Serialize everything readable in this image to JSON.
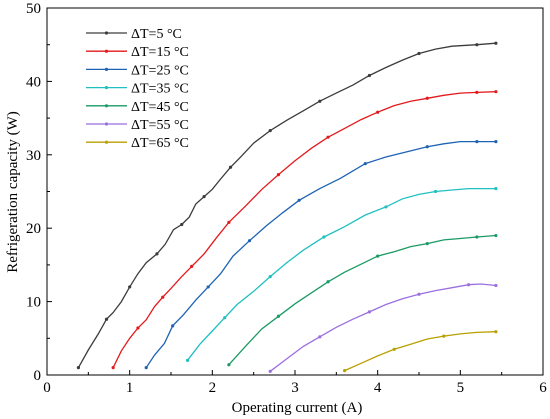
{
  "chart_data": {
    "type": "line",
    "xlabel": "Operating current (A)",
    "ylabel": "Refrigeration capacity (W)",
    "xlim": [
      0,
      6
    ],
    "ylim": [
      0,
      50
    ],
    "xticks": [
      "0",
      "1",
      "2",
      "3",
      "4",
      "5",
      "6"
    ],
    "yticks": [
      "0",
      "10",
      "20",
      "30",
      "40",
      "50"
    ],
    "grid": false,
    "legend_position": "top-left",
    "series": [
      {
        "name": "ΔT=5 °C",
        "color": "#3c3c3c",
        "points": [
          [
            0.38,
            1.0
          ],
          [
            0.5,
            3.4
          ],
          [
            0.62,
            5.6
          ],
          [
            0.72,
            7.6
          ],
          [
            0.8,
            8.5
          ],
          [
            0.9,
            10.0
          ],
          [
            1.0,
            12.0
          ],
          [
            1.1,
            13.8
          ],
          [
            1.2,
            15.3
          ],
          [
            1.33,
            16.5
          ],
          [
            1.43,
            17.8
          ],
          [
            1.53,
            19.8
          ],
          [
            1.63,
            20.5
          ],
          [
            1.72,
            21.5
          ],
          [
            1.8,
            23.3
          ],
          [
            1.9,
            24.3
          ],
          [
            2.0,
            25.3
          ],
          [
            2.1,
            26.7
          ],
          [
            2.22,
            28.3
          ],
          [
            2.35,
            29.8
          ],
          [
            2.5,
            31.6
          ],
          [
            2.7,
            33.3
          ],
          [
            2.9,
            34.7
          ],
          [
            3.1,
            36.0
          ],
          [
            3.3,
            37.3
          ],
          [
            3.5,
            38.4
          ],
          [
            3.7,
            39.5
          ],
          [
            3.9,
            40.8
          ],
          [
            4.1,
            41.9
          ],
          [
            4.3,
            42.9
          ],
          [
            4.5,
            43.8
          ],
          [
            4.7,
            44.4
          ],
          [
            4.9,
            44.8
          ],
          [
            5.2,
            45.0
          ],
          [
            5.43,
            45.2
          ]
        ]
      },
      {
        "name": "ΔT=15 °C",
        "color": "#e31a1c",
        "points": [
          [
            0.8,
            1.0
          ],
          [
            0.9,
            3.3
          ],
          [
            1.0,
            5.0
          ],
          [
            1.1,
            6.4
          ],
          [
            1.2,
            7.5
          ],
          [
            1.3,
            9.3
          ],
          [
            1.4,
            10.6
          ],
          [
            1.5,
            11.8
          ],
          [
            1.62,
            13.3
          ],
          [
            1.75,
            14.8
          ],
          [
            1.9,
            16.5
          ],
          [
            2.05,
            18.7
          ],
          [
            2.2,
            20.8
          ],
          [
            2.4,
            23.0
          ],
          [
            2.6,
            25.3
          ],
          [
            2.8,
            27.3
          ],
          [
            3.0,
            29.2
          ],
          [
            3.2,
            30.9
          ],
          [
            3.4,
            32.4
          ],
          [
            3.6,
            33.6
          ],
          [
            3.8,
            34.8
          ],
          [
            4.0,
            35.8
          ],
          [
            4.2,
            36.7
          ],
          [
            4.4,
            37.3
          ],
          [
            4.6,
            37.7
          ],
          [
            4.8,
            38.1
          ],
          [
            5.0,
            38.4
          ],
          [
            5.2,
            38.5
          ],
          [
            5.43,
            38.6
          ]
        ]
      },
      {
        "name": "ΔT=25 °C",
        "color": "#1f63b4",
        "points": [
          [
            1.2,
            1.0
          ],
          [
            1.3,
            2.7
          ],
          [
            1.42,
            4.3
          ],
          [
            1.52,
            6.7
          ],
          [
            1.65,
            8.2
          ],
          [
            1.8,
            10.2
          ],
          [
            1.95,
            12.0
          ],
          [
            2.1,
            13.8
          ],
          [
            2.25,
            16.2
          ],
          [
            2.45,
            18.3
          ],
          [
            2.65,
            20.3
          ],
          [
            2.85,
            22.1
          ],
          [
            3.05,
            23.8
          ],
          [
            3.3,
            25.4
          ],
          [
            3.55,
            26.8
          ],
          [
            3.85,
            28.8
          ],
          [
            4.1,
            29.7
          ],
          [
            4.35,
            30.4
          ],
          [
            4.6,
            31.1
          ],
          [
            4.8,
            31.5
          ],
          [
            5.0,
            31.8
          ],
          [
            5.2,
            31.8
          ],
          [
            5.43,
            31.8
          ]
        ]
      },
      {
        "name": "ΔT=35 °C",
        "color": "#20c0c0",
        "points": [
          [
            1.7,
            2.0
          ],
          [
            1.85,
            4.2
          ],
          [
            2.0,
            6.0
          ],
          [
            2.15,
            7.8
          ],
          [
            2.3,
            9.6
          ],
          [
            2.5,
            11.4
          ],
          [
            2.7,
            13.4
          ],
          [
            2.9,
            15.3
          ],
          [
            3.1,
            17.0
          ],
          [
            3.35,
            18.8
          ],
          [
            3.6,
            20.2
          ],
          [
            3.85,
            21.8
          ],
          [
            4.1,
            22.9
          ],
          [
            4.3,
            24.0
          ],
          [
            4.5,
            24.6
          ],
          [
            4.7,
            25.0
          ],
          [
            4.9,
            25.2
          ],
          [
            5.1,
            25.4
          ],
          [
            5.43,
            25.4
          ]
        ]
      },
      {
        "name": "ΔT=45 °C",
        "color": "#1a9a64",
        "points": [
          [
            2.2,
            1.4
          ],
          [
            2.4,
            3.9
          ],
          [
            2.6,
            6.3
          ],
          [
            2.8,
            8.0
          ],
          [
            3.0,
            9.7
          ],
          [
            3.2,
            11.2
          ],
          [
            3.4,
            12.7
          ],
          [
            3.6,
            14.0
          ],
          [
            3.8,
            15.1
          ],
          [
            4.0,
            16.2
          ],
          [
            4.2,
            16.8
          ],
          [
            4.4,
            17.5
          ],
          [
            4.6,
            17.9
          ],
          [
            4.8,
            18.4
          ],
          [
            5.0,
            18.6
          ],
          [
            5.2,
            18.8
          ],
          [
            5.43,
            19.0
          ]
        ]
      },
      {
        "name": "ΔT=55 °C",
        "color": "#9b6fe0",
        "points": [
          [
            2.7,
            0.5
          ],
          [
            2.9,
            2.2
          ],
          [
            3.1,
            3.9
          ],
          [
            3.3,
            5.2
          ],
          [
            3.5,
            6.5
          ],
          [
            3.7,
            7.6
          ],
          [
            3.9,
            8.6
          ],
          [
            4.1,
            9.6
          ],
          [
            4.3,
            10.4
          ],
          [
            4.5,
            11.0
          ],
          [
            4.7,
            11.5
          ],
          [
            4.9,
            11.9
          ],
          [
            5.1,
            12.3
          ],
          [
            5.25,
            12.4
          ],
          [
            5.43,
            12.2
          ]
        ]
      },
      {
        "name": "ΔT=65 °C",
        "color": "#b8a000",
        "points": [
          [
            3.6,
            0.6
          ],
          [
            3.8,
            1.6
          ],
          [
            4.0,
            2.6
          ],
          [
            4.2,
            3.5
          ],
          [
            4.4,
            4.2
          ],
          [
            4.6,
            4.9
          ],
          [
            4.8,
            5.3
          ],
          [
            5.0,
            5.6
          ],
          [
            5.2,
            5.8
          ],
          [
            5.43,
            5.9
          ]
        ]
      }
    ]
  }
}
